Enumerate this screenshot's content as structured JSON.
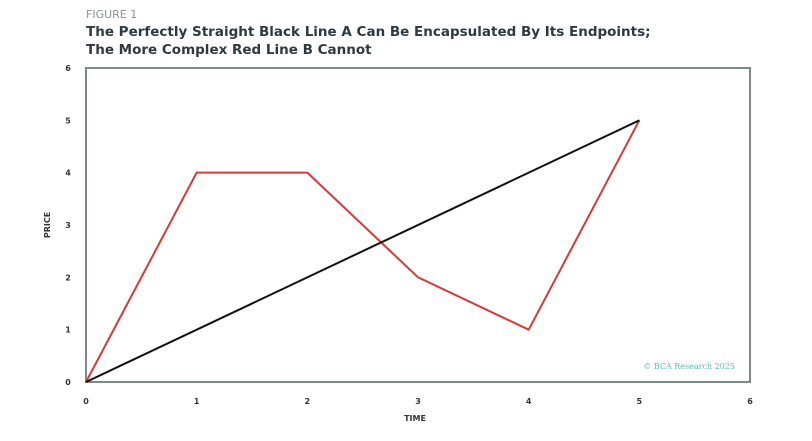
{
  "chart_data": {
    "type": "line",
    "figure_label": "FIGURE 1",
    "title_line1": "The Perfectly Straight Black Line A Can Be Encapsulated By Its Endpoints;",
    "title_line2": "The More Complex Red Line B Cannot",
    "xlabel": "TIME",
    "ylabel": "PRICE",
    "xlim": [
      0,
      6
    ],
    "ylim": [
      0,
      6
    ],
    "xticks": [
      "0",
      "1",
      "2",
      "3",
      "4",
      "5",
      "6"
    ],
    "yticks": [
      "0",
      "1",
      "2",
      "3",
      "4",
      "5",
      "6"
    ],
    "grid": false,
    "series": [
      {
        "name": "Line A",
        "color": "#111111",
        "x": [
          0,
          5
        ],
        "y": [
          0,
          5
        ]
      },
      {
        "name": "Line B",
        "color": "#d63a3a",
        "x": [
          0,
          1,
          2,
          3,
          4,
          5
        ],
        "y": [
          0,
          4,
          4,
          2,
          1,
          5
        ]
      }
    ],
    "source": "© BCA Research 2025"
  }
}
